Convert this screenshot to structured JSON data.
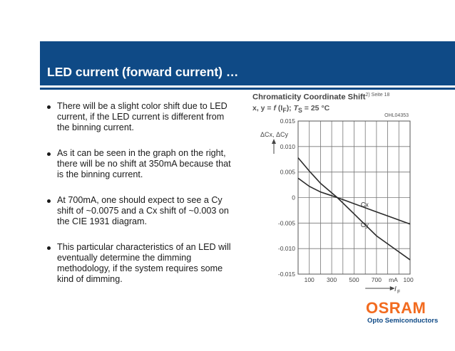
{
  "slide": {
    "title": "LED current (forward current) …",
    "bullets": [
      "There will be a slight color shift due to LED current, if the LED current is different from the binning current.",
      "As it can be seen in the graph on the right, there will be no shift at 350mA because that is the binning current.",
      "At 700mA, one should expect to see a Cy shift of ~0.0075 and a Cx shift of ~0.003 on the CIE 1931 diagram.",
      "This particular characteristics of an LED will eventually determine the dimming methodology, if the system requires some kind of dimming."
    ],
    "colors": {
      "header": "#0f4a86",
      "logo": "#f26b1f"
    }
  },
  "logo": {
    "name": "OSRAM",
    "subtitle": "Opto Semiconductors"
  },
  "chart_data": {
    "type": "line",
    "title": "Chromaticity Coordinate Shift",
    "title_superscript": "2) Seite 18",
    "formula_prefix": "x, y = ",
    "formula_f": "f",
    "formula_args": " (I",
    "formula_args_sub": "F",
    "formula_close": "); ",
    "formula_T": "T",
    "formula_T_sub": "S",
    "formula_tail": " = 25 °C",
    "code": "OHL04353",
    "ylabel": "ΔCx, ΔCy",
    "xlabel": "I",
    "xlabel_sub": "F",
    "x_unit": "mA",
    "ylim": [
      -0.015,
      0.015
    ],
    "xlim": [
      0,
      1000
    ],
    "x_ticks": [
      100,
      200,
      300,
      400,
      500,
      600,
      700,
      800,
      900,
      1000
    ],
    "x_tick_labels": [
      "100",
      "300",
      "500",
      "700",
      "1000"
    ],
    "y_ticks": [
      0.015,
      0.01,
      0.005,
      0,
      -0.005,
      -0.01,
      -0.015
    ],
    "y_tick_labels": [
      "0.015",
      "0.010",
      "0.005",
      "0",
      "-0.005",
      "-0.010",
      "-0.015"
    ],
    "grid": true,
    "series": [
      {
        "name": "Cx",
        "x": [
          0,
          100,
          200,
          350,
          500,
          700,
          1000
        ],
        "y": [
          0.0038,
          0.0022,
          0.0011,
          0,
          -0.0012,
          -0.0028,
          -0.0052
        ]
      },
      {
        "name": "Cy",
        "x": [
          0,
          100,
          200,
          350,
          500,
          700,
          1000
        ],
        "y": [
          0.0078,
          0.0052,
          0.0028,
          0,
          -0.0032,
          -0.0075,
          -0.0122
        ]
      }
    ]
  }
}
